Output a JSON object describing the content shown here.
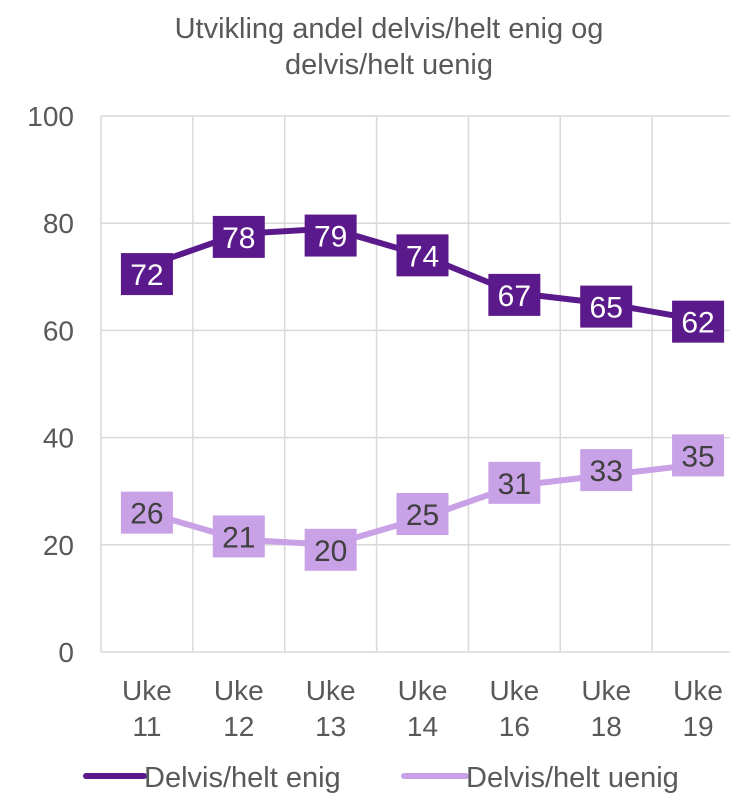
{
  "chart_data": {
    "type": "line",
    "title": [
      "Utvikling andel delvis/helt enig og",
      "delvis/helt uenig"
    ],
    "categories": [
      [
        "Uke",
        "11"
      ],
      [
        "Uke",
        "12"
      ],
      [
        "Uke",
        "13"
      ],
      [
        "Uke",
        "14"
      ],
      [
        "Uke",
        "16"
      ],
      [
        "Uke",
        "18"
      ],
      [
        "Uke",
        "19"
      ]
    ],
    "y_ticks": [
      "0",
      "20",
      "40",
      "60",
      "80",
      "100"
    ],
    "ylim": [
      0,
      100
    ],
    "grid": true,
    "legend": "bottom",
    "series": [
      {
        "name": "Delvis/helt enig",
        "values": [
          72,
          78,
          79,
          74,
          67,
          65,
          62
        ],
        "color": "#5b1a8c",
        "label_color": "#ffffff"
      },
      {
        "name": "Delvis/helt uenig",
        "values": [
          26,
          21,
          20,
          25,
          31,
          33,
          35
        ],
        "color": "#c9a1e6",
        "label_color": "#404040"
      }
    ]
  }
}
